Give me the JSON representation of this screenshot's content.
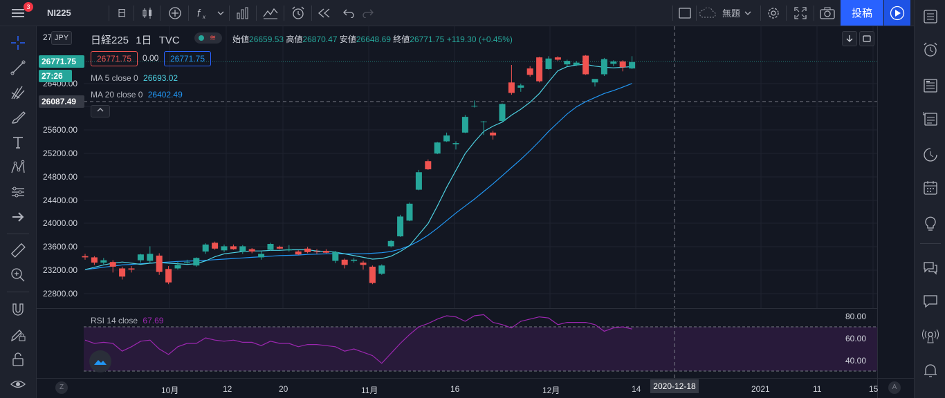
{
  "topbar": {
    "symbol": "NI225",
    "notif_count": "3",
    "interval": "日",
    "untitled": "無題",
    "publish_label": "投稿"
  },
  "legend": {
    "name": "日経225",
    "interval": "1日",
    "exchange": "TVC",
    "open_label": "始値",
    "open": "26659.53",
    "high_label": "高値",
    "high": "26870.47",
    "low_label": "安値",
    "low": "26648.69",
    "close_label": "終値",
    "close": "26771.75",
    "change": "+119.30 (+0.45%)",
    "bid": "26771.75",
    "spread": "0.00",
    "ask": "26771.75",
    "ma5_label": "MA 5 close 0",
    "ma5_value": "26693.02",
    "ma20_label": "MA 20 close 0",
    "ma20_value": "26402.49",
    "rsi_label": "RSI 14 close",
    "rsi_value": "67.69"
  },
  "price_axis": {
    "currency": "JPY",
    "labels": [
      "27",
      "26400.00",
      "25600.00",
      "25200.00",
      "24800.00",
      "24400.00",
      "24000.00",
      "23600.00",
      "23200.00",
      "22800.00"
    ],
    "last_price_tag": "26771.75",
    "countdown_tag": "27:26",
    "crosshair_tag": "26087.49"
  },
  "rsi_axis": {
    "labels": [
      "80.00",
      "60.00",
      "40.00"
    ]
  },
  "time_axis": {
    "labels": [
      "10月",
      "12",
      "20",
      "11月",
      "16",
      "12月",
      "14",
      "2021",
      "11",
      "15"
    ],
    "crosshair_date": "2020-12-18",
    "left_btn": "Z",
    "right_btn": "A"
  },
  "colors": {
    "up": "#26a69a",
    "down": "#ef5350",
    "ma5": "#4dd0e1",
    "ma20": "#2196f3",
    "rsi": "#9c27b0",
    "accent": "#2962ff"
  },
  "chart_data": {
    "type": "candlestick",
    "ylim": [
      22600,
      27000
    ],
    "candles": [
      {
        "o": 23440,
        "h": 23480,
        "l": 23380,
        "c": 23420
      },
      {
        "o": 23420,
        "h": 23440,
        "l": 23290,
        "c": 23330
      },
      {
        "o": 23330,
        "h": 23410,
        "l": 23300,
        "c": 23370
      },
      {
        "o": 23340,
        "h": 23370,
        "l": 23160,
        "c": 23260
      },
      {
        "o": 23230,
        "h": 23260,
        "l": 23040,
        "c": 23090
      },
      {
        "o": 23230,
        "h": 23270,
        "l": 23160,
        "c": 23210
      },
      {
        "o": 23370,
        "h": 23480,
        "l": 23330,
        "c": 23470
      },
      {
        "o": 23360,
        "h": 23610,
        "l": 23330,
        "c": 23480
      },
      {
        "o": 23450,
        "h": 23490,
        "l": 23120,
        "c": 23170
      },
      {
        "o": 23220,
        "h": 23270,
        "l": 22960,
        "c": 22990
      },
      {
        "o": 23230,
        "h": 23340,
        "l": 23210,
        "c": 23290
      },
      {
        "o": 23330,
        "h": 23380,
        "l": 23310,
        "c": 23340
      },
      {
        "o": 23280,
        "h": 23420,
        "l": 23260,
        "c": 23410
      },
      {
        "o": 23520,
        "h": 23660,
        "l": 23480,
        "c": 23640
      },
      {
        "o": 23670,
        "h": 23690,
        "l": 23550,
        "c": 23570
      },
      {
        "o": 23540,
        "h": 23640,
        "l": 23510,
        "c": 23610
      },
      {
        "o": 23610,
        "h": 23640,
        "l": 23550,
        "c": 23560
      },
      {
        "o": 23520,
        "h": 23630,
        "l": 23480,
        "c": 23610
      },
      {
        "o": 23560,
        "h": 23580,
        "l": 23490,
        "c": 23520
      },
      {
        "o": 23420,
        "h": 23530,
        "l": 23380,
        "c": 23480
      },
      {
        "o": 23550,
        "h": 23670,
        "l": 23530,
        "c": 23650
      },
      {
        "o": 23600,
        "h": 23620,
        "l": 23560,
        "c": 23570
      },
      {
        "o": 23540,
        "h": 23630,
        "l": 23520,
        "c": 23560
      },
      {
        "o": 23520,
        "h": 23540,
        "l": 23460,
        "c": 23470
      },
      {
        "o": 23570,
        "h": 23600,
        "l": 23490,
        "c": 23510
      },
      {
        "o": 23520,
        "h": 23560,
        "l": 23480,
        "c": 23510
      },
      {
        "o": 23530,
        "h": 23560,
        "l": 23490,
        "c": 23500
      },
      {
        "o": 23360,
        "h": 23530,
        "l": 23320,
        "c": 23510
      },
      {
        "o": 23380,
        "h": 23400,
        "l": 23230,
        "c": 23290
      },
      {
        "o": 23360,
        "h": 23410,
        "l": 23330,
        "c": 23380
      },
      {
        "o": 23330,
        "h": 23360,
        "l": 23210,
        "c": 23290
      },
      {
        "o": 23260,
        "h": 23280,
        "l": 22960,
        "c": 22980
      },
      {
        "o": 23140,
        "h": 23300,
        "l": 23120,
        "c": 23280
      },
      {
        "o": 23610,
        "h": 23720,
        "l": 23590,
        "c": 23700
      },
      {
        "o": 23780,
        "h": 24150,
        "l": 23770,
        "c": 24120
      },
      {
        "o": 24050,
        "h": 24360,
        "l": 24040,
        "c": 24340
      },
      {
        "o": 24580,
        "h": 24920,
        "l": 24570,
        "c": 24880
      },
      {
        "o": 25070,
        "h": 25100,
        "l": 24920,
        "c": 24930
      },
      {
        "o": 25200,
        "h": 25400,
        "l": 25190,
        "c": 25390
      },
      {
        "o": 25410,
        "h": 25560,
        "l": 25400,
        "c": 25510
      },
      {
        "o": 25360,
        "h": 25410,
        "l": 25270,
        "c": 25380
      },
      {
        "o": 25560,
        "h": 25860,
        "l": 25550,
        "c": 25830
      },
      {
        "o": 26020,
        "h": 26110,
        "l": 25990,
        "c": 26020
      },
      {
        "o": 25740,
        "h": 25760,
        "l": 25520,
        "c": 25750
      },
      {
        "o": 25560,
        "h": 25590,
        "l": 25440,
        "c": 25510
      },
      {
        "o": 25760,
        "h": 26060,
        "l": 25750,
        "c": 26050
      },
      {
        "o": 26420,
        "h": 26720,
        "l": 26210,
        "c": 26240
      },
      {
        "o": 26330,
        "h": 26400,
        "l": 26260,
        "c": 26370
      },
      {
        "o": 26660,
        "h": 26700,
        "l": 26520,
        "c": 26550
      },
      {
        "o": 26850,
        "h": 26860,
        "l": 26420,
        "c": 26440
      },
      {
        "o": 26650,
        "h": 26870,
        "l": 26640,
        "c": 26830
      },
      {
        "o": 26850,
        "h": 26870,
        "l": 26790,
        "c": 26810
      },
      {
        "o": 26730,
        "h": 26810,
        "l": 26690,
        "c": 26790
      },
      {
        "o": 26720,
        "h": 26790,
        "l": 26700,
        "c": 26760
      },
      {
        "o": 26880,
        "h": 26890,
        "l": 26550,
        "c": 26560
      },
      {
        "o": 26420,
        "h": 26460,
        "l": 26350,
        "c": 26480
      },
      {
        "o": 26560,
        "h": 26840,
        "l": 26530,
        "c": 26820
      },
      {
        "o": 26740,
        "h": 26800,
        "l": 26700,
        "c": 26780
      },
      {
        "o": 26780,
        "h": 26800,
        "l": 26610,
        "c": 26680
      },
      {
        "o": 26660,
        "h": 26870,
        "l": 26650,
        "c": 26770
      }
    ],
    "ma5": [
      23210,
      23250,
      23290,
      23320,
      23340,
      23320,
      23300,
      23320,
      23330,
      23320,
      23310,
      23300,
      23310,
      23360,
      23430,
      23480,
      23500,
      23520,
      23530,
      23530,
      23540,
      23540,
      23550,
      23550,
      23550,
      23530,
      23520,
      23510,
      23480,
      23450,
      23420,
      23390,
      23400,
      23440,
      23520,
      23620,
      23810,
      24000,
      24300,
      24620,
      24910,
      25200,
      25400,
      25580,
      25670,
      25740,
      25860,
      25960,
      26080,
      26230,
      26430,
      26620,
      26690,
      26720,
      26730,
      26700,
      26680,
      26670,
      26680,
      26693
    ],
    "ma20": [
      23210,
      23230,
      23250,
      23270,
      23290,
      23300,
      23310,
      23320,
      23330,
      23340,
      23350,
      23355,
      23360,
      23370,
      23380,
      23390,
      23400,
      23410,
      23420,
      23430,
      23440,
      23450,
      23455,
      23460,
      23470,
      23475,
      23480,
      23480,
      23480,
      23480,
      23480,
      23490,
      23500,
      23520,
      23560,
      23620,
      23700,
      23800,
      23920,
      24050,
      24180,
      24300,
      24420,
      24550,
      24680,
      24820,
      24960,
      25100,
      25250,
      25410,
      25580,
      25730,
      25880,
      26000,
      26090,
      26160,
      26230,
      26280,
      26340,
      26402
    ],
    "rsi": [
      58,
      55,
      56,
      55,
      48,
      52,
      57,
      58,
      50,
      45,
      52,
      55,
      55,
      60,
      58,
      57,
      58,
      56,
      56,
      53,
      57,
      55,
      55,
      52,
      54,
      54,
      53,
      52,
      48,
      50,
      47,
      44,
      37,
      46,
      55,
      63,
      70,
      73,
      77,
      80,
      79,
      75,
      80,
      81,
      74,
      72,
      69,
      75,
      77,
      79,
      78,
      72,
      74,
      74,
      74,
      72,
      66,
      69,
      70,
      68
    ]
  }
}
